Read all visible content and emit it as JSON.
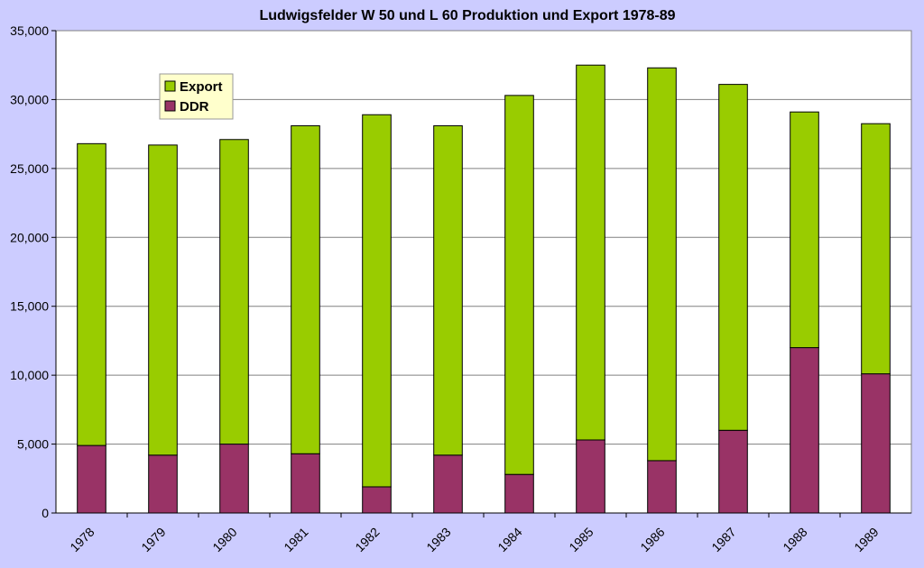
{
  "chart_data": {
    "type": "bar",
    "stacked": true,
    "title": "Ludwigsfelder W 50 und L 60 Produktion und Export 1978-89",
    "xlabel": "",
    "ylabel": "",
    "categories": [
      "1978",
      "1979",
      "1980",
      "1981",
      "1982",
      "1983",
      "1984",
      "1985",
      "1986",
      "1987",
      "1988",
      "1989"
    ],
    "series": [
      {
        "name": "DDR",
        "color": "#993366",
        "values": [
          4900,
          4200,
          5000,
          4300,
          1900,
          4200,
          2800,
          5300,
          3800,
          6000,
          12000,
          10100
        ]
      },
      {
        "name": "Export",
        "color": "#99cc00",
        "values": [
          21900,
          22500,
          22100,
          23800,
          27000,
          23900,
          27500,
          27200,
          28500,
          25100,
          17100,
          18150
        ]
      }
    ],
    "ylim": [
      0,
      35000
    ],
    "yticks": [
      "0",
      "5,000",
      "10,000",
      "15,000",
      "20,000",
      "25,000",
      "30,000",
      "35,000"
    ],
    "grid": true,
    "legend": {
      "placement": "top-left",
      "entries": [
        {
          "label": "Export",
          "color": "#99cc00"
        },
        {
          "label": "DDR",
          "color": "#993366"
        }
      ]
    },
    "colors": {
      "page_background": "#ccccff",
      "plot_background": "#ffffff",
      "gridline": "#808080",
      "legend_background": "#ffffcc"
    }
  }
}
